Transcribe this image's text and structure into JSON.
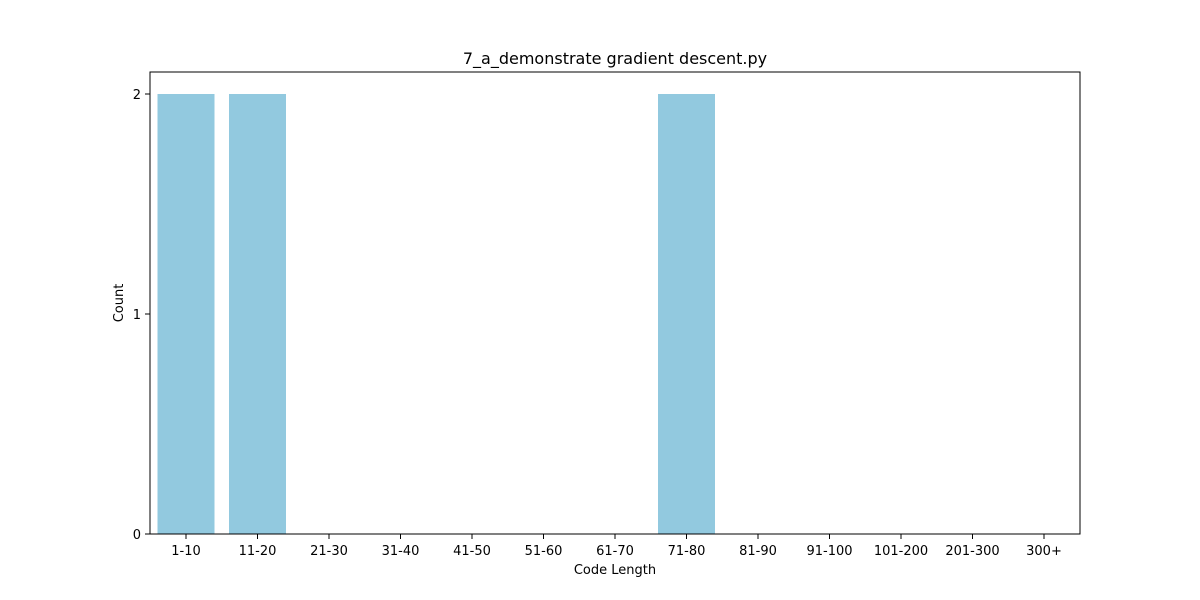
{
  "chart_data": {
    "type": "bar",
    "title": "7_a_demonstrate gradient descent.py",
    "xlabel": "Code Length",
    "ylabel": "Count",
    "categories": [
      "1-10",
      "11-20",
      "21-30",
      "31-40",
      "41-50",
      "51-60",
      "61-70",
      "71-80",
      "81-90",
      "91-100",
      "101-200",
      "201-300",
      "300+"
    ],
    "values": [
      2,
      2,
      0,
      0,
      0,
      0,
      0,
      2,
      0,
      0,
      0,
      0,
      0
    ],
    "ylim": [
      0,
      2.1
    ],
    "yticks": [
      0,
      1,
      2
    ],
    "grid": false,
    "legend": "none",
    "bar_color": "#92c9df"
  }
}
